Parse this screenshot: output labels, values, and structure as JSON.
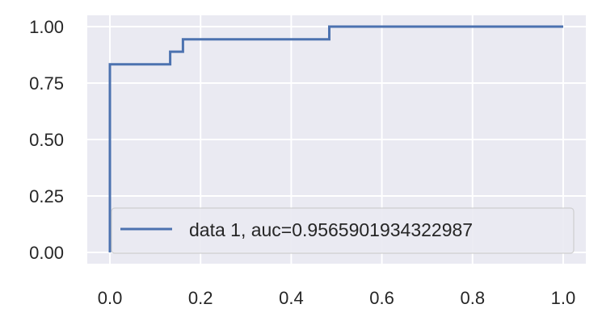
{
  "chart_data": {
    "type": "line",
    "title": "",
    "xlabel": "",
    "ylabel": "",
    "xlim": [
      -0.05,
      1.05
    ],
    "ylim": [
      -0.05,
      1.05
    ],
    "xticks": [
      0.0,
      0.2,
      0.4,
      0.6,
      0.8,
      1.0
    ],
    "xtick_labels": [
      "0.0",
      "0.2",
      "0.4",
      "0.6",
      "0.8",
      "1.0"
    ],
    "yticks": [
      0.0,
      0.25,
      0.5,
      0.75,
      1.0
    ],
    "ytick_labels": [
      "0.00",
      "0.25",
      "0.50",
      "0.75",
      "1.00"
    ],
    "grid": true,
    "legend_placement": "lower-right",
    "colors": {
      "plot_background": "#EAEAF2",
      "grid": "#FFFFFF",
      "series": "#4C72B0",
      "text": "#262626"
    },
    "series": [
      {
        "name": "data 1, auc=0.9565901934322987",
        "step": true,
        "x": [
          0.0,
          0.0,
          0.0,
          0.133,
          0.133,
          0.161,
          0.161,
          0.484,
          0.484,
          1.0
        ],
        "y": [
          0.0,
          0.0,
          0.833,
          0.833,
          0.889,
          0.889,
          0.944,
          0.944,
          1.0,
          1.0
        ]
      }
    ]
  }
}
